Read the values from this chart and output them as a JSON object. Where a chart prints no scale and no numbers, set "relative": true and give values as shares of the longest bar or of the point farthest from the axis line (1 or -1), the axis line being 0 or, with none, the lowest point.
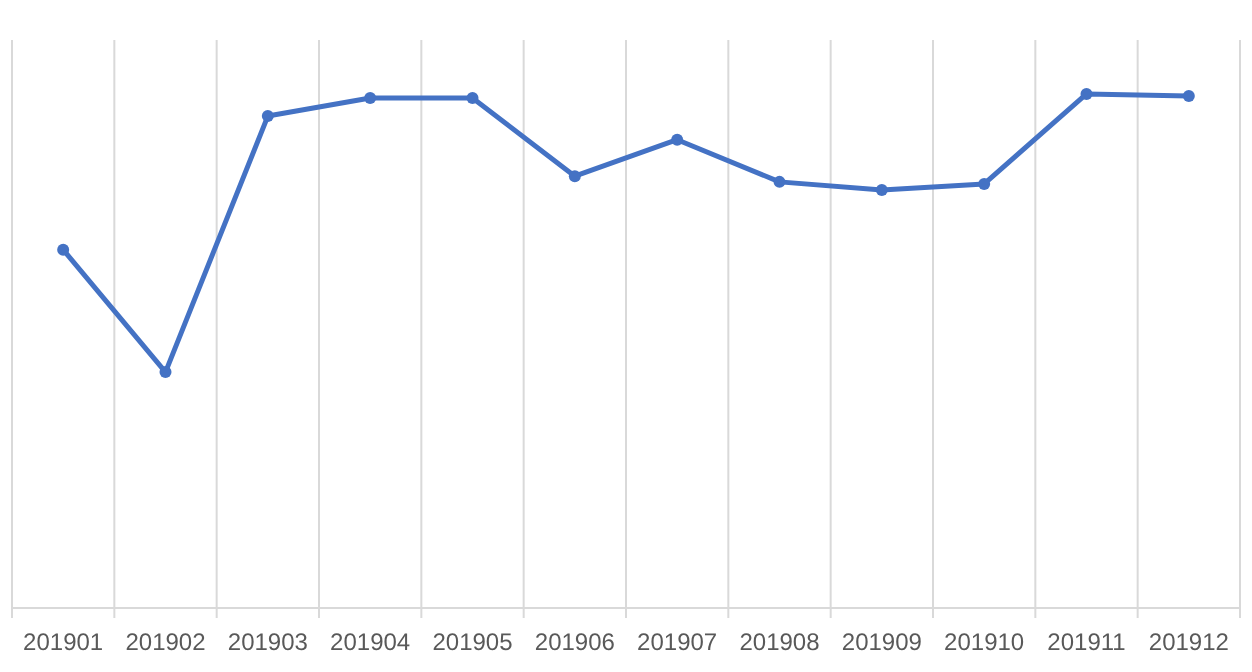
{
  "chart_data": {
    "type": "line",
    "relative": true,
    "categories": [
      "201901",
      "201902",
      "201903",
      "201904",
      "201905",
      "201906",
      "201907",
      "201908",
      "201909",
      "201910",
      "201911",
      "201912"
    ],
    "series": [
      {
        "color": "#4472c4",
        "values": [
          0.697,
          0.459,
          0.957,
          0.992,
          0.992,
          0.84,
          0.911,
          0.829,
          0.813,
          0.825,
          1,
          0.996
        ]
      }
    ],
    "grid": "x",
    "marker": "circle",
    "line_style": "solid"
  }
}
